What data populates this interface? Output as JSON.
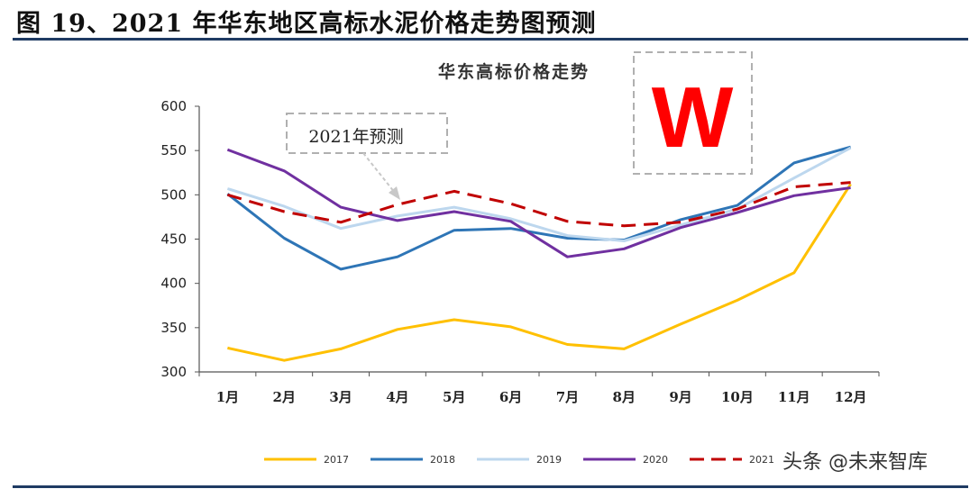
{
  "figure": {
    "title": "图 19、2021 年华东地区高标水泥价格走势图预测"
  },
  "watermark": "头条 @未来智库",
  "chart_data": {
    "type": "line",
    "title": "华东高标价格走势",
    "annotation": "2021年预测",
    "logo_letter": "W",
    "categories": [
      "1月",
      "2月",
      "3月",
      "4月",
      "5月",
      "6月",
      "7月",
      "8月",
      "9月",
      "10月",
      "11月",
      "12月"
    ],
    "ylim": [
      300,
      600
    ],
    "yticks": [
      300,
      350,
      400,
      450,
      500,
      550,
      600
    ],
    "grid": false,
    "legend_position": "bottom",
    "series": [
      {
        "name": "2017",
        "color": "#ffc000",
        "dashed": false,
        "values": [
          327,
          313,
          326,
          348,
          359,
          351,
          331,
          326,
          354,
          381,
          412,
          512
        ]
      },
      {
        "name": "2018",
        "color": "#2e75b6",
        "dashed": false,
        "values": [
          501,
          451,
          416,
          430,
          460,
          462,
          451,
          449,
          472,
          488,
          536,
          554
        ]
      },
      {
        "name": "2019",
        "color": "#bdd7ee",
        "dashed": false,
        "values": [
          507,
          487,
          462,
          476,
          486,
          473,
          454,
          448,
          466,
          484,
          519,
          553
        ]
      },
      {
        "name": "2020",
        "color": "#7030a0",
        "dashed": false,
        "values": [
          551,
          527,
          486,
          471,
          481,
          470,
          430,
          439,
          463,
          480,
          499,
          508
        ]
      },
      {
        "name": "2021",
        "color": "#c00000",
        "dashed": true,
        "values": [
          500,
          481,
          469,
          489,
          504,
          490,
          470,
          465,
          469,
          484,
          509,
          514
        ]
      }
    ]
  }
}
